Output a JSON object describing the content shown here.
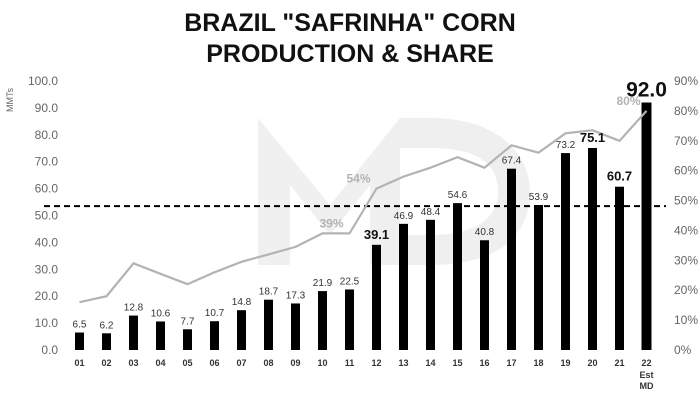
{
  "chart_data": {
    "type": "bar",
    "title_lines": [
      "BRAZIL \"SAFRINHA\" CORN",
      "PRODUCTION & SHARE"
    ],
    "ylabel": "MMTs",
    "ylim": [
      0,
      100
    ],
    "y_ticks": [
      "0.0",
      "10.0",
      "20.0",
      "30.0",
      "40.0",
      "50.0",
      "60.0",
      "70.0",
      "80.0",
      "90.0",
      "100.0"
    ],
    "y2lim": [
      0,
      90
    ],
    "y2_ticks": [
      "0%",
      "10%",
      "20%",
      "30%",
      "40%",
      "50%",
      "60%",
      "70%",
      "80%",
      "90%"
    ],
    "categories": [
      "01",
      "02",
      "03",
      "04",
      "05",
      "06",
      "07",
      "08",
      "09",
      "10",
      "11",
      "12",
      "13",
      "14",
      "15",
      "16",
      "17",
      "18",
      "19",
      "20",
      "21",
      "22"
    ],
    "category_sublabels": [
      {
        "index": 21,
        "lines": [
          "Est",
          "MD"
        ]
      }
    ],
    "series": [
      {
        "type": "bar",
        "color": "#000000",
        "values": [
          6.5,
          6.2,
          12.8,
          10.6,
          7.7,
          10.7,
          14.8,
          18.7,
          17.3,
          21.9,
          22.5,
          39.1,
          46.9,
          48.4,
          54.6,
          40.8,
          67.4,
          53.9,
          73.2,
          75.1,
          60.7,
          92.0
        ],
        "labels": [
          "6.5",
          "6.2",
          "12.8",
          "10.6",
          "7.7",
          "10.7",
          "14.8",
          "18.7",
          "17.3",
          "21.9",
          "22.5",
          "39.1",
          "46.9",
          "48.4",
          "54.6",
          "40.8",
          "67.4",
          "53.9",
          "73.2",
          "75.1",
          "60.7",
          "92.0"
        ],
        "emphasis": {
          "11": "big",
          "19": "big",
          "20": "big",
          "21": "huge"
        }
      },
      {
        "type": "line",
        "axis": "right",
        "color": "#b3b3b3",
        "values": [
          16,
          18,
          29,
          25.5,
          22,
          26,
          29.5,
          32,
          34.5,
          39,
          39,
          54,
          58,
          61,
          64.5,
          61,
          68.5,
          66,
          72.5,
          73.5,
          70,
          80
        ],
        "labels": [
          {
            "index": 10,
            "text": "39%"
          },
          {
            "index": 11,
            "text": "54%"
          },
          {
            "index": 21,
            "text": "80%"
          }
        ]
      }
    ],
    "reference_line": {
      "y": 53.5,
      "style": "dashed",
      "color": "#000000"
    },
    "watermark": "MD",
    "grid": false,
    "legend": "none"
  }
}
